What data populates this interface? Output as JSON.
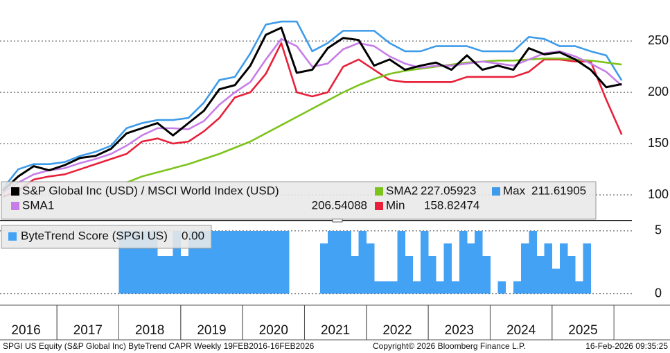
{
  "chart_data": [
    {
      "type": "line",
      "x": [
        2016.125,
        2016.375,
        2016.625,
        2016.875,
        2017.125,
        2017.375,
        2017.625,
        2017.875,
        2018.125,
        2018.375,
        2018.625,
        2018.875,
        2019.125,
        2019.375,
        2019.625,
        2019.875,
        2020.125,
        2020.375,
        2020.625,
        2020.875,
        2021.125,
        2021.375,
        2021.625,
        2021.875,
        2022.125,
        2022.375,
        2022.625,
        2022.875,
        2023.125,
        2023.375,
        2023.625,
        2023.875,
        2024.125,
        2024.375,
        2024.625,
        2024.875,
        2025.125,
        2025.375,
        2025.625,
        2025.875,
        2026.125
      ],
      "xlim": [
        2016.08,
        2026.29
      ],
      "ylim": [
        75,
        290
      ],
      "yticks": [
        100,
        150,
        200,
        250
      ],
      "grid": true,
      "series": [
        {
          "name": "S&P Global Inc (USD) / MSCI World Index (USD)",
          "color": "#000000",
          "values": [
            104,
            118,
            128,
            124,
            129,
            136,
            138,
            145,
            160,
            165,
            170,
            158,
            170,
            182,
            203,
            207,
            226,
            256,
            263,
            219,
            222,
            243,
            253,
            251,
            226,
            232,
            222,
            226,
            229,
            222,
            236,
            222,
            226,
            222,
            243,
            237,
            239,
            232,
            222,
            205,
            208
          ]
        },
        {
          "name": "SMA1",
          "color": "#c77de8",
          "values": [
            102,
            112,
            120,
            124,
            126,
            131,
            135,
            140,
            148,
            158,
            165,
            165,
            164,
            172,
            188,
            200,
            210,
            232,
            252,
            245,
            225,
            228,
            242,
            248,
            245,
            235,
            228,
            224,
            226,
            226,
            228,
            230,
            228,
            226,
            232,
            238,
            240,
            235,
            228,
            220,
            206.54088
          ]
        },
        {
          "name": "SMA2",
          "color": "#7dc31c",
          "values": [
            null,
            null,
            null,
            null,
            null,
            null,
            null,
            null,
            112,
            118,
            122,
            126,
            130,
            135,
            140,
            146,
            152,
            160,
            168,
            176,
            184,
            192,
            200,
            207,
            213,
            218,
            221,
            223,
            225,
            227,
            229,
            230,
            231,
            231,
            232,
            233,
            233,
            232,
            231,
            229,
            227.05923
          ]
        },
        {
          "name": "Min",
          "color": "#e8203a",
          "values": [
            98,
            104,
            115,
            118,
            120,
            125,
            130,
            135,
            140,
            152,
            155,
            150,
            152,
            162,
            175,
            195,
            200,
            218,
            248,
            200,
            196,
            200,
            225,
            232,
            222,
            212,
            210,
            210,
            210,
            210,
            215,
            215,
            215,
            215,
            220,
            232,
            232,
            230,
            230,
            193,
            158.82474
          ]
        },
        {
          "name": "Max",
          "color": "#3d9be9",
          "values": [
            106,
            125,
            130,
            130,
            132,
            138,
            142,
            148,
            165,
            170,
            173,
            173,
            175,
            190,
            212,
            215,
            238,
            266,
            269,
            269,
            240,
            248,
            260,
            260,
            260,
            248,
            240,
            240,
            245,
            245,
            245,
            240,
            240,
            240,
            254,
            252,
            245,
            245,
            240,
            236,
            211.61905
          ]
        }
      ]
    },
    {
      "type": "bar",
      "name": "ByteTrend Score (SPGI US)",
      "legend_value": "0.00",
      "color": "#44a2f4",
      "x": [
        2016.125,
        2016.25,
        2016.375,
        2016.5,
        2016.625,
        2016.75,
        2016.875,
        2017,
        2017.125,
        2017.25,
        2017.375,
        2017.5,
        2017.625,
        2017.75,
        2017.875,
        2018,
        2018.125,
        2018.25,
        2018.375,
        2018.5,
        2018.625,
        2018.75,
        2018.875,
        2019,
        2019.125,
        2019.25,
        2019.375,
        2019.5,
        2019.625,
        2019.75,
        2019.875,
        2020,
        2020.125,
        2020.25,
        2020.375,
        2020.5,
        2020.625,
        2020.75,
        2020.875,
        2021,
        2021.125,
        2021.25,
        2021.375,
        2021.5,
        2021.625,
        2021.75,
        2021.875,
        2022,
        2022.125,
        2022.25,
        2022.375,
        2022.5,
        2022.625,
        2022.75,
        2022.875,
        2023,
        2023.125,
        2023.25,
        2023.375,
        2023.5,
        2023.625,
        2023.75,
        2023.875,
        2024,
        2024.125,
        2024.25,
        2024.375,
        2024.5,
        2024.625,
        2024.75,
        2024.875,
        2025,
        2025.125,
        2025.25,
        2025.375,
        2025.5,
        2025.625,
        2025.75,
        2025.875,
        2026,
        2026.125
      ],
      "values": [
        0,
        0,
        0,
        0,
        0,
        0,
        0,
        0,
        0,
        0,
        0,
        0,
        0,
        0,
        0,
        5,
        5,
        5,
        5,
        5,
        3,
        3,
        5,
        3,
        5,
        5,
        5,
        5,
        5,
        5,
        5,
        5,
        5,
        5,
        5,
        5,
        5,
        0,
        0,
        0,
        0,
        4,
        5,
        5,
        5,
        3,
        5,
        4,
        1,
        1,
        1,
        5,
        3,
        1,
        5,
        3,
        1,
        4,
        1,
        5,
        4,
        5,
        3,
        0,
        1,
        0,
        1,
        4,
        5,
        3,
        4,
        2,
        4,
        3,
        1,
        4,
        0,
        0,
        0,
        0,
        0
      ],
      "xlim": [
        2016.08,
        2026.29
      ],
      "ylim": [
        -0.9,
        5.6
      ],
      "yticks": [
        0,
        5
      ],
      "grid": true,
      "xticks": [
        {
          "value": 2016.5,
          "label": "2016"
        },
        {
          "value": 2017.5,
          "label": "2017"
        },
        {
          "value": 2018.5,
          "label": "2018"
        },
        {
          "value": 2019.5,
          "label": "2019"
        },
        {
          "value": 2020.5,
          "label": "2020"
        },
        {
          "value": 2021.5,
          "label": "2021"
        },
        {
          "value": 2022.5,
          "label": "2022"
        },
        {
          "value": 2023.5,
          "label": "2023"
        },
        {
          "value": 2024.5,
          "label": "2024"
        },
        {
          "value": 2025.5,
          "label": "2025"
        }
      ]
    }
  ],
  "footer": {
    "left": "SPGI US Equity (S&P Global Inc) ByteTrend CAPR Weekly 19FEB2016-16FEB2026",
    "center": "Copyright© 2026 Bloomberg Finance L.P.",
    "right": "16-Feb-2026 09:35:25"
  }
}
